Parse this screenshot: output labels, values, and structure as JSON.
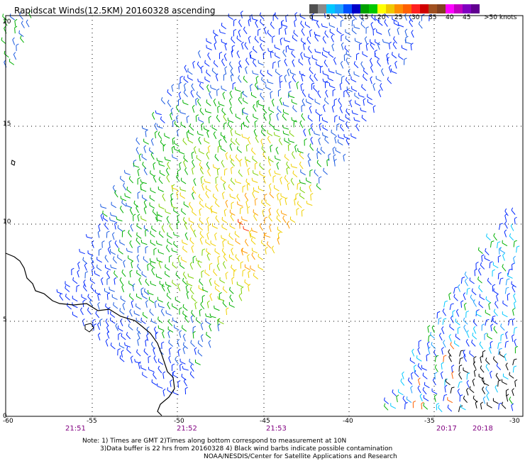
{
  "title": "Rapidscat Winds(12.5KM) 20160328 ascending",
  "legend": {
    "colors": [
      "#505050",
      "#8a8a8a",
      "#00c8ff",
      "#1ea0ff",
      "#0050ff",
      "#0000c8",
      "#00a000",
      "#00c800",
      "#ffff00",
      "#f0c800",
      "#ff8c00",
      "#ff6000",
      "#ff2020",
      "#d00000",
      "#a05020",
      "#804020",
      "#ff00ff",
      "#c000c0",
      "#8000c0",
      "#600090"
    ],
    "labels": [
      "0",
      "5",
      "10",
      "15",
      "20",
      "25",
      "30",
      "35",
      "40",
      "45",
      ">50 knots"
    ]
  },
  "lat_labels": [
    "20",
    "15",
    "10",
    "5",
    "0"
  ],
  "lon_labels": [
    "-60",
    "-55",
    "-50",
    "-45",
    "-40",
    "-35",
    "-30"
  ],
  "time_labels": [
    "21:51",
    "21:52",
    "21:53",
    "20:17",
    "20:18"
  ],
  "notes": [
    "Note: 1) Times are GMT 2)Times along bottom correspond to measurement at 10N",
    "3)Data buffer is 22 hrs from 20160328 4) Black wind barbs indicate possible contamination",
    "NOAA/NESDIS/Center for Satellite Applications and Research"
  ]
}
